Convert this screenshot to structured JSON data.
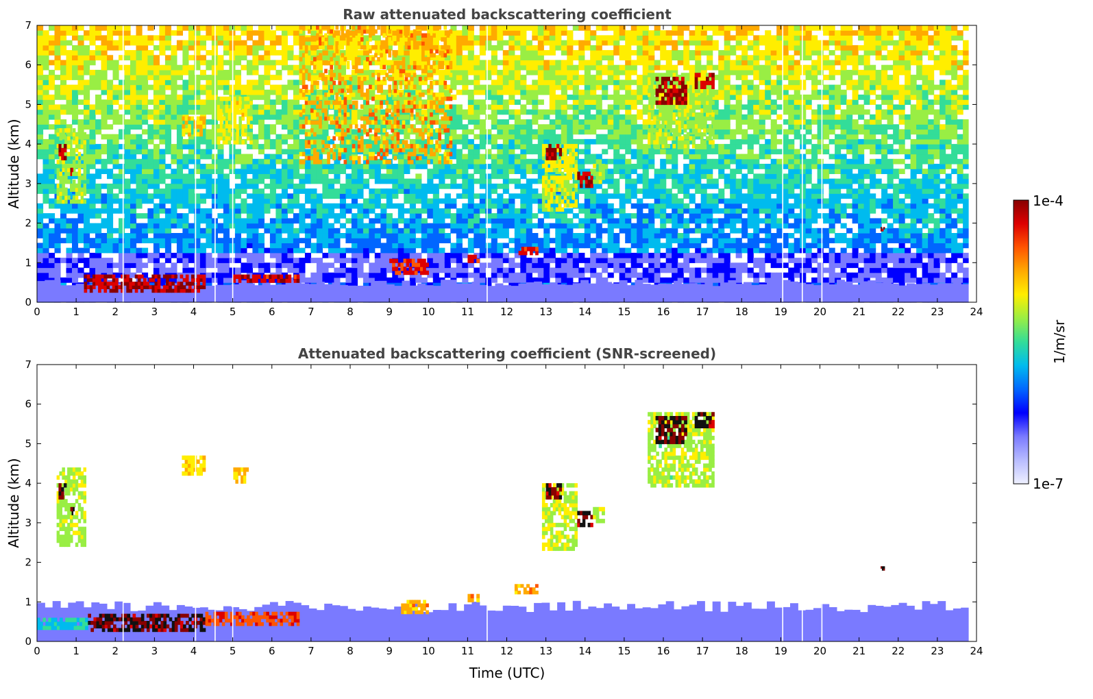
{
  "chart_data": [
    {
      "type": "heatmap",
      "title": "Raw attenuated backscattering coefficient",
      "xlabel": "",
      "ylabel": "Altitude (km)",
      "xlim": [
        0,
        24
      ],
      "ylim": [
        0,
        7
      ],
      "x_ticks": [
        "0",
        "1",
        "2",
        "3",
        "4",
        "5",
        "6",
        "7",
        "8",
        "9",
        "10",
        "11",
        "12",
        "13",
        "14",
        "15",
        "16",
        "17",
        "18",
        "19",
        "20",
        "21",
        "22",
        "23",
        "24"
      ],
      "y_ticks": [
        "0",
        "1",
        "2",
        "3",
        "4",
        "5",
        "6",
        "7"
      ],
      "data_end_time": 23.8,
      "missing_profiles": [
        2.2,
        4.05,
        4.55,
        5.0,
        11.5,
        19.05,
        19.55,
        20.05
      ],
      "features": [
        {
          "kind": "boundary_layer",
          "t0": 0.0,
          "t1": 23.8,
          "alt_top": 0.5,
          "level": 0.15
        },
        {
          "kind": "aerosol_layer",
          "t0": 1.2,
          "t1": 4.3,
          "alt0": 0.25,
          "alt1": 0.7,
          "level": 0.95
        },
        {
          "kind": "aerosol_layer",
          "t0": 5.0,
          "t1": 6.7,
          "alt0": 0.5,
          "alt1": 0.7,
          "level": 0.92
        },
        {
          "kind": "cloud",
          "t0": 0.5,
          "t1": 1.25,
          "alt0": 2.5,
          "alt1": 4.4,
          "level": 0.6
        },
        {
          "kind": "cloud",
          "t0": 0.55,
          "t1": 0.75,
          "alt0": 3.6,
          "alt1": 4.0,
          "level": 0.97
        },
        {
          "kind": "cloud",
          "t0": 0.85,
          "t1": 0.95,
          "alt0": 3.2,
          "alt1": 3.4,
          "level": 0.97
        },
        {
          "kind": "cloud",
          "t0": 3.7,
          "t1": 4.3,
          "alt0": 4.2,
          "alt1": 4.7,
          "level": 0.7
        },
        {
          "kind": "cloud",
          "t0": 4.6,
          "t1": 5.5,
          "alt0": 4.0,
          "alt1": 5.2,
          "level": 0.65
        },
        {
          "kind": "cloud",
          "t0": 9.0,
          "t1": 10.0,
          "alt0": 0.7,
          "alt1": 1.1,
          "level": 0.9
        },
        {
          "kind": "cloud",
          "t0": 11.0,
          "t1": 11.3,
          "alt0": 1.0,
          "alt1": 1.2,
          "level": 0.9
        },
        {
          "kind": "cloud",
          "t0": 12.3,
          "t1": 12.8,
          "alt0": 1.2,
          "alt1": 1.4,
          "level": 0.9
        },
        {
          "kind": "cloud",
          "t0": 12.9,
          "t1": 13.8,
          "alt0": 2.3,
          "alt1": 4.0,
          "level": 0.65
        },
        {
          "kind": "cloud",
          "t0": 13.0,
          "t1": 13.4,
          "alt0": 3.6,
          "alt1": 4.0,
          "level": 0.98
        },
        {
          "kind": "cloud",
          "t0": 13.8,
          "t1": 14.2,
          "alt0": 2.9,
          "alt1": 3.3,
          "level": 0.97
        },
        {
          "kind": "cloud",
          "t0": 14.2,
          "t1": 14.5,
          "alt0": 3.0,
          "alt1": 3.5,
          "level": 0.6
        },
        {
          "kind": "cloud",
          "t0": 15.6,
          "t1": 17.3,
          "alt0": 3.9,
          "alt1": 5.8,
          "level": 0.6
        },
        {
          "kind": "cloud",
          "t0": 15.8,
          "t1": 16.6,
          "alt0": 5.0,
          "alt1": 5.7,
          "level": 0.98
        },
        {
          "kind": "cloud",
          "t0": 16.8,
          "t1": 17.3,
          "alt0": 5.4,
          "alt1": 5.8,
          "level": 0.97
        },
        {
          "kind": "cloud",
          "t0": 21.55,
          "t1": 21.65,
          "alt0": 1.8,
          "alt1": 1.9,
          "level": 0.95
        },
        {
          "kind": "noise_band",
          "t0": 6.7,
          "t1": 10.6,
          "alt0": 3.5,
          "alt1": 7.0,
          "level": 0.75
        }
      ]
    },
    {
      "type": "heatmap",
      "title": "Attenuated backscattering coefficient (SNR-screened)",
      "xlabel": "Time (UTC)",
      "ylabel": "Altitude (km)",
      "xlim": [
        0,
        24
      ],
      "ylim": [
        0,
        7
      ],
      "x_ticks": [
        "0",
        "1",
        "2",
        "3",
        "4",
        "5",
        "6",
        "7",
        "8",
        "9",
        "10",
        "11",
        "12",
        "13",
        "14",
        "15",
        "16",
        "17",
        "18",
        "19",
        "20",
        "21",
        "22",
        "23",
        "24"
      ],
      "y_ticks": [
        "0",
        "1",
        "2",
        "3",
        "4",
        "5",
        "6",
        "7"
      ],
      "data_end_time": 23.8,
      "missing_profiles": [
        2.2,
        4.05,
        4.55,
        5.0,
        11.5,
        19.05,
        19.55,
        20.05
      ],
      "features": [
        {
          "kind": "boundary_layer",
          "t0": 0.0,
          "t1": 23.8,
          "alt_top": 0.9,
          "level": 0.15
        },
        {
          "kind": "aerosol_layer",
          "t0": 0.0,
          "t1": 1.3,
          "alt0": 0.3,
          "alt1": 0.6,
          "level": 0.45
        },
        {
          "kind": "aerosol_layer",
          "t0": 1.3,
          "t1": 4.3,
          "alt0": 0.25,
          "alt1": 0.7,
          "level": 1.0
        },
        {
          "kind": "aerosol_layer",
          "t0": 4.3,
          "t1": 6.7,
          "alt0": 0.4,
          "alt1": 0.75,
          "level": 0.85
        },
        {
          "kind": "cloud",
          "t0": 9.3,
          "t1": 10.0,
          "alt0": 0.7,
          "alt1": 1.05,
          "level": 0.75
        },
        {
          "kind": "cloud",
          "t0": 11.0,
          "t1": 11.3,
          "alt0": 1.0,
          "alt1": 1.2,
          "level": 0.75
        },
        {
          "kind": "cloud",
          "t0": 12.2,
          "t1": 12.8,
          "alt0": 1.2,
          "alt1": 1.45,
          "level": 0.75
        },
        {
          "kind": "cloud",
          "t0": 0.5,
          "t1": 1.25,
          "alt0": 2.4,
          "alt1": 4.4,
          "level": 0.6
        },
        {
          "kind": "cloud",
          "t0": 0.55,
          "t1": 0.75,
          "alt0": 3.6,
          "alt1": 4.0,
          "level": 1.0
        },
        {
          "kind": "cloud",
          "t0": 0.85,
          "t1": 0.95,
          "alt0": 3.2,
          "alt1": 3.4,
          "level": 1.0
        },
        {
          "kind": "cloud",
          "t0": 3.7,
          "t1": 4.3,
          "alt0": 4.2,
          "alt1": 4.7,
          "level": 0.7
        },
        {
          "kind": "cloud",
          "t0": 5.0,
          "t1": 5.4,
          "alt0": 4.0,
          "alt1": 4.4,
          "level": 0.72
        },
        {
          "kind": "cloud",
          "t0": 12.9,
          "t1": 13.8,
          "alt0": 2.3,
          "alt1": 4.0,
          "level": 0.62
        },
        {
          "kind": "cloud",
          "t0": 13.0,
          "t1": 13.4,
          "alt0": 3.6,
          "alt1": 4.0,
          "level": 1.0
        },
        {
          "kind": "cloud",
          "t0": 13.8,
          "t1": 14.2,
          "alt0": 2.9,
          "alt1": 3.3,
          "level": 1.0
        },
        {
          "kind": "cloud",
          "t0": 14.2,
          "t1": 14.5,
          "alt0": 3.0,
          "alt1": 3.4,
          "level": 0.6
        },
        {
          "kind": "cloud",
          "t0": 15.6,
          "t1": 17.3,
          "alt0": 3.9,
          "alt1": 5.8,
          "level": 0.6
        },
        {
          "kind": "cloud",
          "t0": 15.8,
          "t1": 16.6,
          "alt0": 5.0,
          "alt1": 5.7,
          "level": 1.0
        },
        {
          "kind": "cloud",
          "t0": 16.8,
          "t1": 17.3,
          "alt0": 5.4,
          "alt1": 5.8,
          "level": 0.98
        },
        {
          "kind": "cloud",
          "t0": 21.55,
          "t1": 21.65,
          "alt0": 1.8,
          "alt1": 1.9,
          "level": 1.0
        }
      ]
    }
  ],
  "colorbar": {
    "max_label": "1e-4",
    "min_label": "1e-7",
    "unit_label": "1/m/sr",
    "colors": [
      "#eef0ff",
      "#b8bcff",
      "#7a7aff",
      "#0000ff",
      "#0066ff",
      "#00bbee",
      "#33dd99",
      "#99ee44",
      "#ffee00",
      "#ffaa00",
      "#ff5500",
      "#dd0000",
      "#880000"
    ]
  }
}
